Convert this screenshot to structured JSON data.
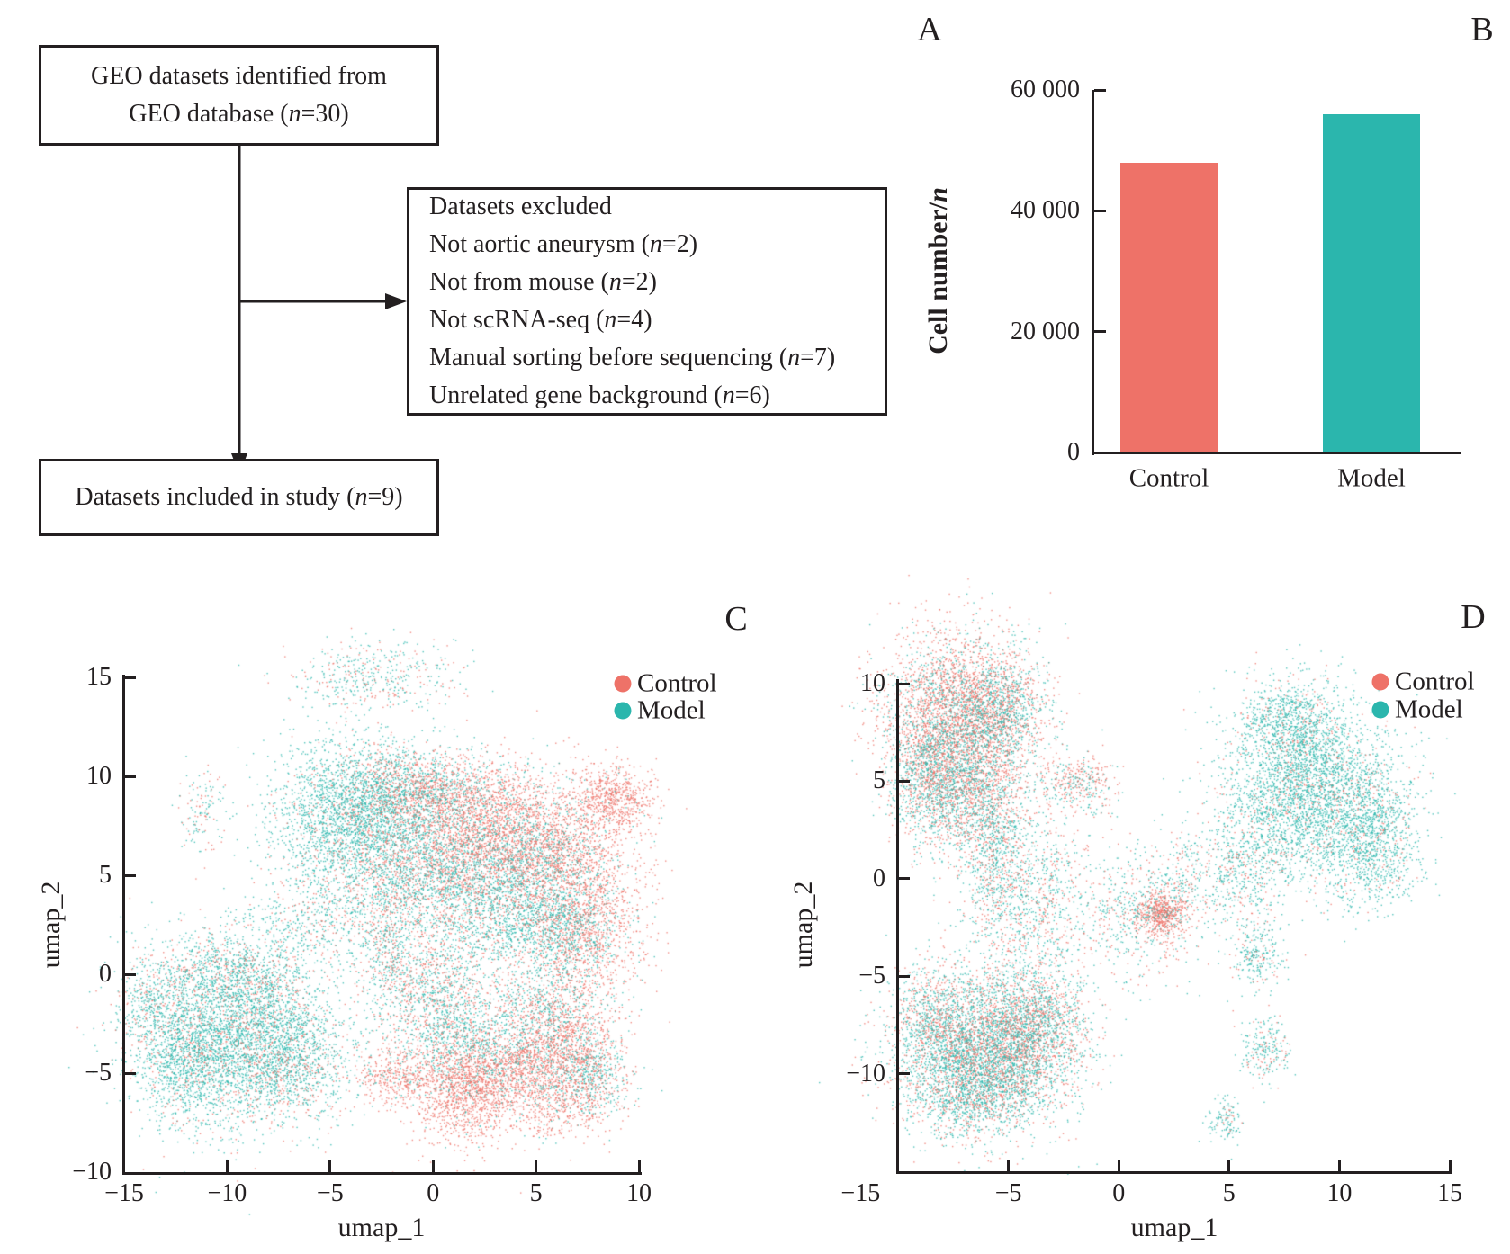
{
  "figure": {
    "panel_labels": [
      "A",
      "B",
      "C",
      "D"
    ]
  },
  "colors": {
    "control": "#EE7268",
    "model": "#2BB6AD",
    "ink": "#231f20"
  },
  "flowchart": {
    "top_box": {
      "line1": "GEO datasets identified from",
      "line2": {
        "pre": "GEO database (",
        "var": "n",
        "post": "=30)"
      }
    },
    "excluded_box": {
      "lines": [
        {
          "pre": "Datasets excluded",
          "var": "",
          "post": ""
        },
        {
          "pre": "Not aortic aneurysm (",
          "var": "n",
          "post": "=2)"
        },
        {
          "pre": "Not from mouse (",
          "var": "n",
          "post": "=2)"
        },
        {
          "pre": "Not scRNA-seq (",
          "var": "n",
          "post": "=4)"
        },
        {
          "pre": "Manual sorting before sequencing (",
          "var": "n",
          "post": "=7)"
        },
        {
          "pre": "Unrelated gene background (",
          "var": "n",
          "post": "=6)"
        }
      ]
    },
    "included_box": {
      "pre": "Datasets included in study (",
      "var": "n",
      "post": "=9)"
    }
  },
  "chart_data": [
    {
      "id": "B",
      "type": "bar",
      "categories": [
        "Control",
        "Model"
      ],
      "values": [
        48000,
        56000
      ],
      "series_color_keys": [
        "control",
        "model"
      ],
      "ylabel": {
        "pre": "Cell number/",
        "italic": "n"
      },
      "ylim": [
        0,
        60000
      ],
      "yticks": [
        {
          "label": "0",
          "value": 0
        },
        {
          "label": "20 000",
          "value": 20000
        },
        {
          "label": "40 000",
          "value": 40000
        },
        {
          "label": "60 000",
          "value": 60000
        }
      ]
    },
    {
      "id": "C",
      "type": "scatter",
      "xlabel": "umap_1",
      "ylabel": "umap_2",
      "xlim": [
        -15,
        10
      ],
      "ylim": [
        -10,
        15
      ],
      "xticks": [
        {
          "label": "−15",
          "value": -15,
          "mark": false
        },
        {
          "label": "−10",
          "value": -10,
          "mark": true
        },
        {
          "label": "−5",
          "value": -5,
          "mark": true
        },
        {
          "label": "0",
          "value": 0,
          "mark": true
        },
        {
          "label": "5",
          "value": 5,
          "mark": true
        },
        {
          "label": "10",
          "value": 10,
          "mark": true
        }
      ],
      "yticks": [
        {
          "label": "15",
          "value": 15,
          "mark": true
        },
        {
          "label": "10",
          "value": 10,
          "mark": true
        },
        {
          "label": "5",
          "value": 5,
          "mark": true
        },
        {
          "label": "0",
          "value": 0,
          "mark": true
        },
        {
          "label": "−5",
          "value": -5,
          "mark": true
        },
        {
          "label": "−10",
          "value": -10,
          "mark": false
        }
      ],
      "legend": [
        {
          "label": "Control",
          "series": "control"
        },
        {
          "label": "Model",
          "series": "model"
        }
      ],
      "clusters": [
        [
          -2.9,
          15.1,
          2.0,
          0.9,
          450,
          0.35
        ],
        [
          -1.9,
          10.8,
          0.6,
          0.5,
          35,
          0.5
        ],
        [
          -11.3,
          8.3,
          0.6,
          1.1,
          130,
          0.35
        ],
        [
          -8.5,
          2.8,
          0.8,
          0.5,
          60,
          0.1
        ],
        [
          -3.8,
          8.1,
          2.0,
          1.8,
          2600,
          0.12
        ],
        [
          -0.7,
          9.4,
          1.75,
          1.0,
          1100,
          0.55
        ],
        [
          2.8,
          7.6,
          2.3,
          1.6,
          2400,
          0.78
        ],
        [
          -0.5,
          4.9,
          2.4,
          1.8,
          2000,
          0.42
        ],
        [
          3.4,
          3.8,
          2.0,
          1.9,
          1700,
          0.28
        ],
        [
          6.3,
          6.0,
          1.5,
          1.45,
          1000,
          0.75
        ],
        [
          7.8,
          2.4,
          1.3,
          1.8,
          1000,
          0.8
        ],
        [
          6.1,
          2.4,
          1.2,
          1.35,
          700,
          0.3
        ],
        [
          8.8,
          8.9,
          1.0,
          0.85,
          650,
          0.97
        ],
        [
          -9.9,
          -2.4,
          2.4,
          2.2,
          2800,
          0.2
        ],
        [
          -11.9,
          -4.4,
          1.3,
          1.8,
          900,
          0.15
        ],
        [
          -7.5,
          -4.4,
          2.0,
          1.6,
          1500,
          0.25
        ],
        [
          -9.4,
          0.1,
          2.0,
          0.9,
          600,
          0.35
        ],
        [
          -13.8,
          -1.5,
          0.8,
          1.1,
          250,
          0.3
        ],
        [
          -0.05,
          -0.8,
          1.5,
          1.5,
          900,
          0.45
        ],
        [
          1.7,
          -3.5,
          1.5,
          1.35,
          900,
          0.3
        ],
        [
          1.7,
          -6.0,
          1.3,
          1.25,
          1200,
          0.93
        ],
        [
          4.1,
          -4.6,
          1.2,
          1.0,
          700,
          0.85
        ],
        [
          6.7,
          -3.7,
          1.3,
          1.15,
          800,
          0.8
        ],
        [
          5.6,
          -1.7,
          1.3,
          1.15,
          700,
          0.5
        ],
        [
          7.6,
          -5.3,
          1.0,
          0.9,
          400,
          0.25
        ],
        [
          -1.6,
          -5.1,
          1.0,
          0.8,
          450,
          0.9
        ],
        [
          -2.2,
          1.5,
          0.8,
          1.35,
          350,
          0.45
        ],
        [
          -5.7,
          2.9,
          1.1,
          1.1,
          300,
          0.3
        ],
        [
          6.1,
          -6.5,
          1.3,
          0.9,
          500,
          0.85
        ]
      ]
    },
    {
      "id": "D",
      "type": "scatter",
      "xlabel": "umap_1",
      "ylabel": "umap_2",
      "xlim": [
        -10,
        15
      ],
      "ylim": [
        -15,
        10
      ],
      "xticks": [
        {
          "label": "−15",
          "value": -11.7,
          "mark": false
        },
        {
          "label": "−5",
          "value": -5,
          "mark": true
        },
        {
          "label": "0",
          "value": 0,
          "mark": true
        },
        {
          "label": "5",
          "value": 5,
          "mark": true
        },
        {
          "label": "10",
          "value": 10,
          "mark": true
        },
        {
          "label": "15",
          "value": 15,
          "mark": true
        }
      ],
      "yticks": [
        {
          "label": "10",
          "value": 10,
          "mark": true
        },
        {
          "label": "5",
          "value": 5,
          "mark": true
        },
        {
          "label": "0",
          "value": 0,
          "mark": true
        },
        {
          "label": "−5",
          "value": -5,
          "mark": true
        },
        {
          "label": "−10",
          "value": -10,
          "mark": true
        }
      ],
      "legend": [
        {
          "label": "Control",
          "series": "control"
        },
        {
          "label": "Model",
          "series": "model"
        }
      ],
      "clusters": [
        [
          -7.3,
          8.4,
          1.7,
          2.1,
          3200,
          0.68
        ],
        [
          -8.7,
          5.4,
          0.8,
          1.6,
          700,
          0.35
        ],
        [
          -6.9,
          4.5,
          1.4,
          1.75,
          1600,
          0.45
        ],
        [
          -5.4,
          8.6,
          1.0,
          1.3,
          800,
          0.3
        ],
        [
          -5.6,
          0.8,
          0.73,
          1.8,
          600,
          0.35
        ],
        [
          -1.8,
          4.9,
          0.9,
          0.74,
          350,
          0.6
        ],
        [
          -3.8,
          -1.1,
          1.4,
          2.5,
          900,
          0.35
        ],
        [
          1.9,
          -1.76,
          0.57,
          0.6,
          550,
          0.92
        ],
        [
          1.1,
          -2.0,
          1.6,
          1.4,
          500,
          0.45
        ],
        [
          -6.0,
          -8.7,
          1.95,
          1.95,
          3800,
          0.42
        ],
        [
          -6.9,
          -11.0,
          1.4,
          1.15,
          900,
          0.25
        ],
        [
          -8.5,
          -7.1,
          0.9,
          1.4,
          600,
          0.4
        ],
        [
          -3.8,
          -7.5,
          1.2,
          1.6,
          1200,
          0.45
        ],
        [
          8.6,
          4.9,
          1.8,
          2.3,
          3000,
          0.12
        ],
        [
          11.3,
          2.2,
          1.2,
          1.8,
          1200,
          0.15
        ],
        [
          7.6,
          8.2,
          1.0,
          1.0,
          500,
          0.15
        ],
        [
          6.0,
          1.2,
          1.0,
          1.8,
          500,
          0.2
        ],
        [
          3.5,
          0.3,
          1.6,
          1.1,
          350,
          0.35
        ],
        [
          6.2,
          -3.8,
          0.6,
          0.9,
          250,
          0.2
        ],
        [
          6.6,
          -8.7,
          0.57,
          0.8,
          220,
          0.25
        ],
        [
          4.8,
          -12.4,
          0.4,
          0.6,
          120,
          0.15
        ]
      ]
    }
  ]
}
